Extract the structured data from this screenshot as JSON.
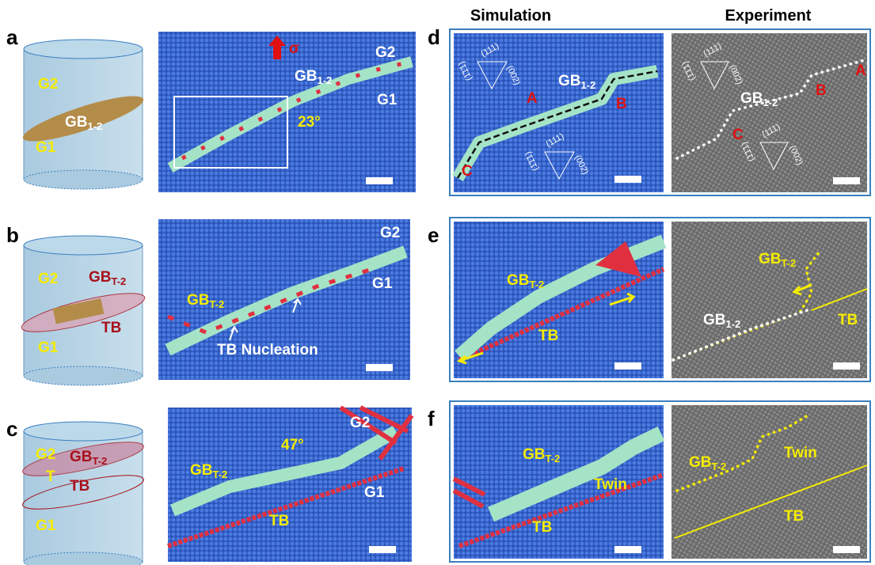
{
  "headers": {
    "simulation": "Simulation",
    "experiment": "Experiment"
  },
  "a": {
    "label": "a",
    "cylinder": {
      "g2": "G2",
      "gb": {
        "base": "GB",
        "sub": "1-2"
      },
      "g1": "G1"
    },
    "sim": {
      "sigma": "σ",
      "g2": "G2",
      "gb": {
        "base": "GB",
        "sub": "1-2"
      },
      "g1": "G1",
      "angle": "23°"
    }
  },
  "b": {
    "label": "b",
    "cylinder": {
      "g2": "G2",
      "gb": {
        "base": "GB",
        "sub": "T-2"
      },
      "tb": "TB",
      "g1": "G1"
    },
    "sim": {
      "g2": "G2",
      "g1": "G1",
      "gb": {
        "base": "GB",
        "sub": "T-2"
      },
      "note": "TB Nucleation"
    }
  },
  "c": {
    "label": "c",
    "cylinder": {
      "g2": "G2",
      "gb": {
        "base": "GB",
        "sub": "T-2"
      },
      "t": "T",
      "tb": "TB",
      "g1": "G1"
    },
    "sim": {
      "g2": "G2",
      "angle": "47°",
      "gb": {
        "base": "GB",
        "sub": "T-2"
      },
      "g1": "G1",
      "tb": "TB"
    }
  },
  "d": {
    "label": "d",
    "sim": {
      "gb": {
        "base": "GB",
        "sub": "1-2"
      },
      "A": "A",
      "B": "B",
      "C": "C"
    },
    "exp": {
      "gb": {
        "base": "GB",
        "sub": "1-2"
      },
      "A": "A",
      "B": "B",
      "C": "C"
    },
    "miller": [
      "(111)",
      "(002)",
      "(1̄1̄1)"
    ]
  },
  "e": {
    "label": "e",
    "sim": {
      "gb": {
        "base": "GB",
        "sub": "T-2"
      },
      "tb": "TB"
    },
    "exp": {
      "gb": {
        "base": "GB",
        "sub": "T-2"
      },
      "gb2": {
        "base": "GB",
        "sub": "1-2"
      },
      "tb": "TB"
    }
  },
  "f": {
    "label": "f",
    "sim": {
      "gb": {
        "base": "GB",
        "sub": "T-2"
      },
      "twin": "Twin",
      "tb": "TB"
    },
    "exp": {
      "gb": {
        "base": "GB",
        "sub": "T-2"
      },
      "twin": "Twin",
      "tb": "TB"
    }
  }
}
